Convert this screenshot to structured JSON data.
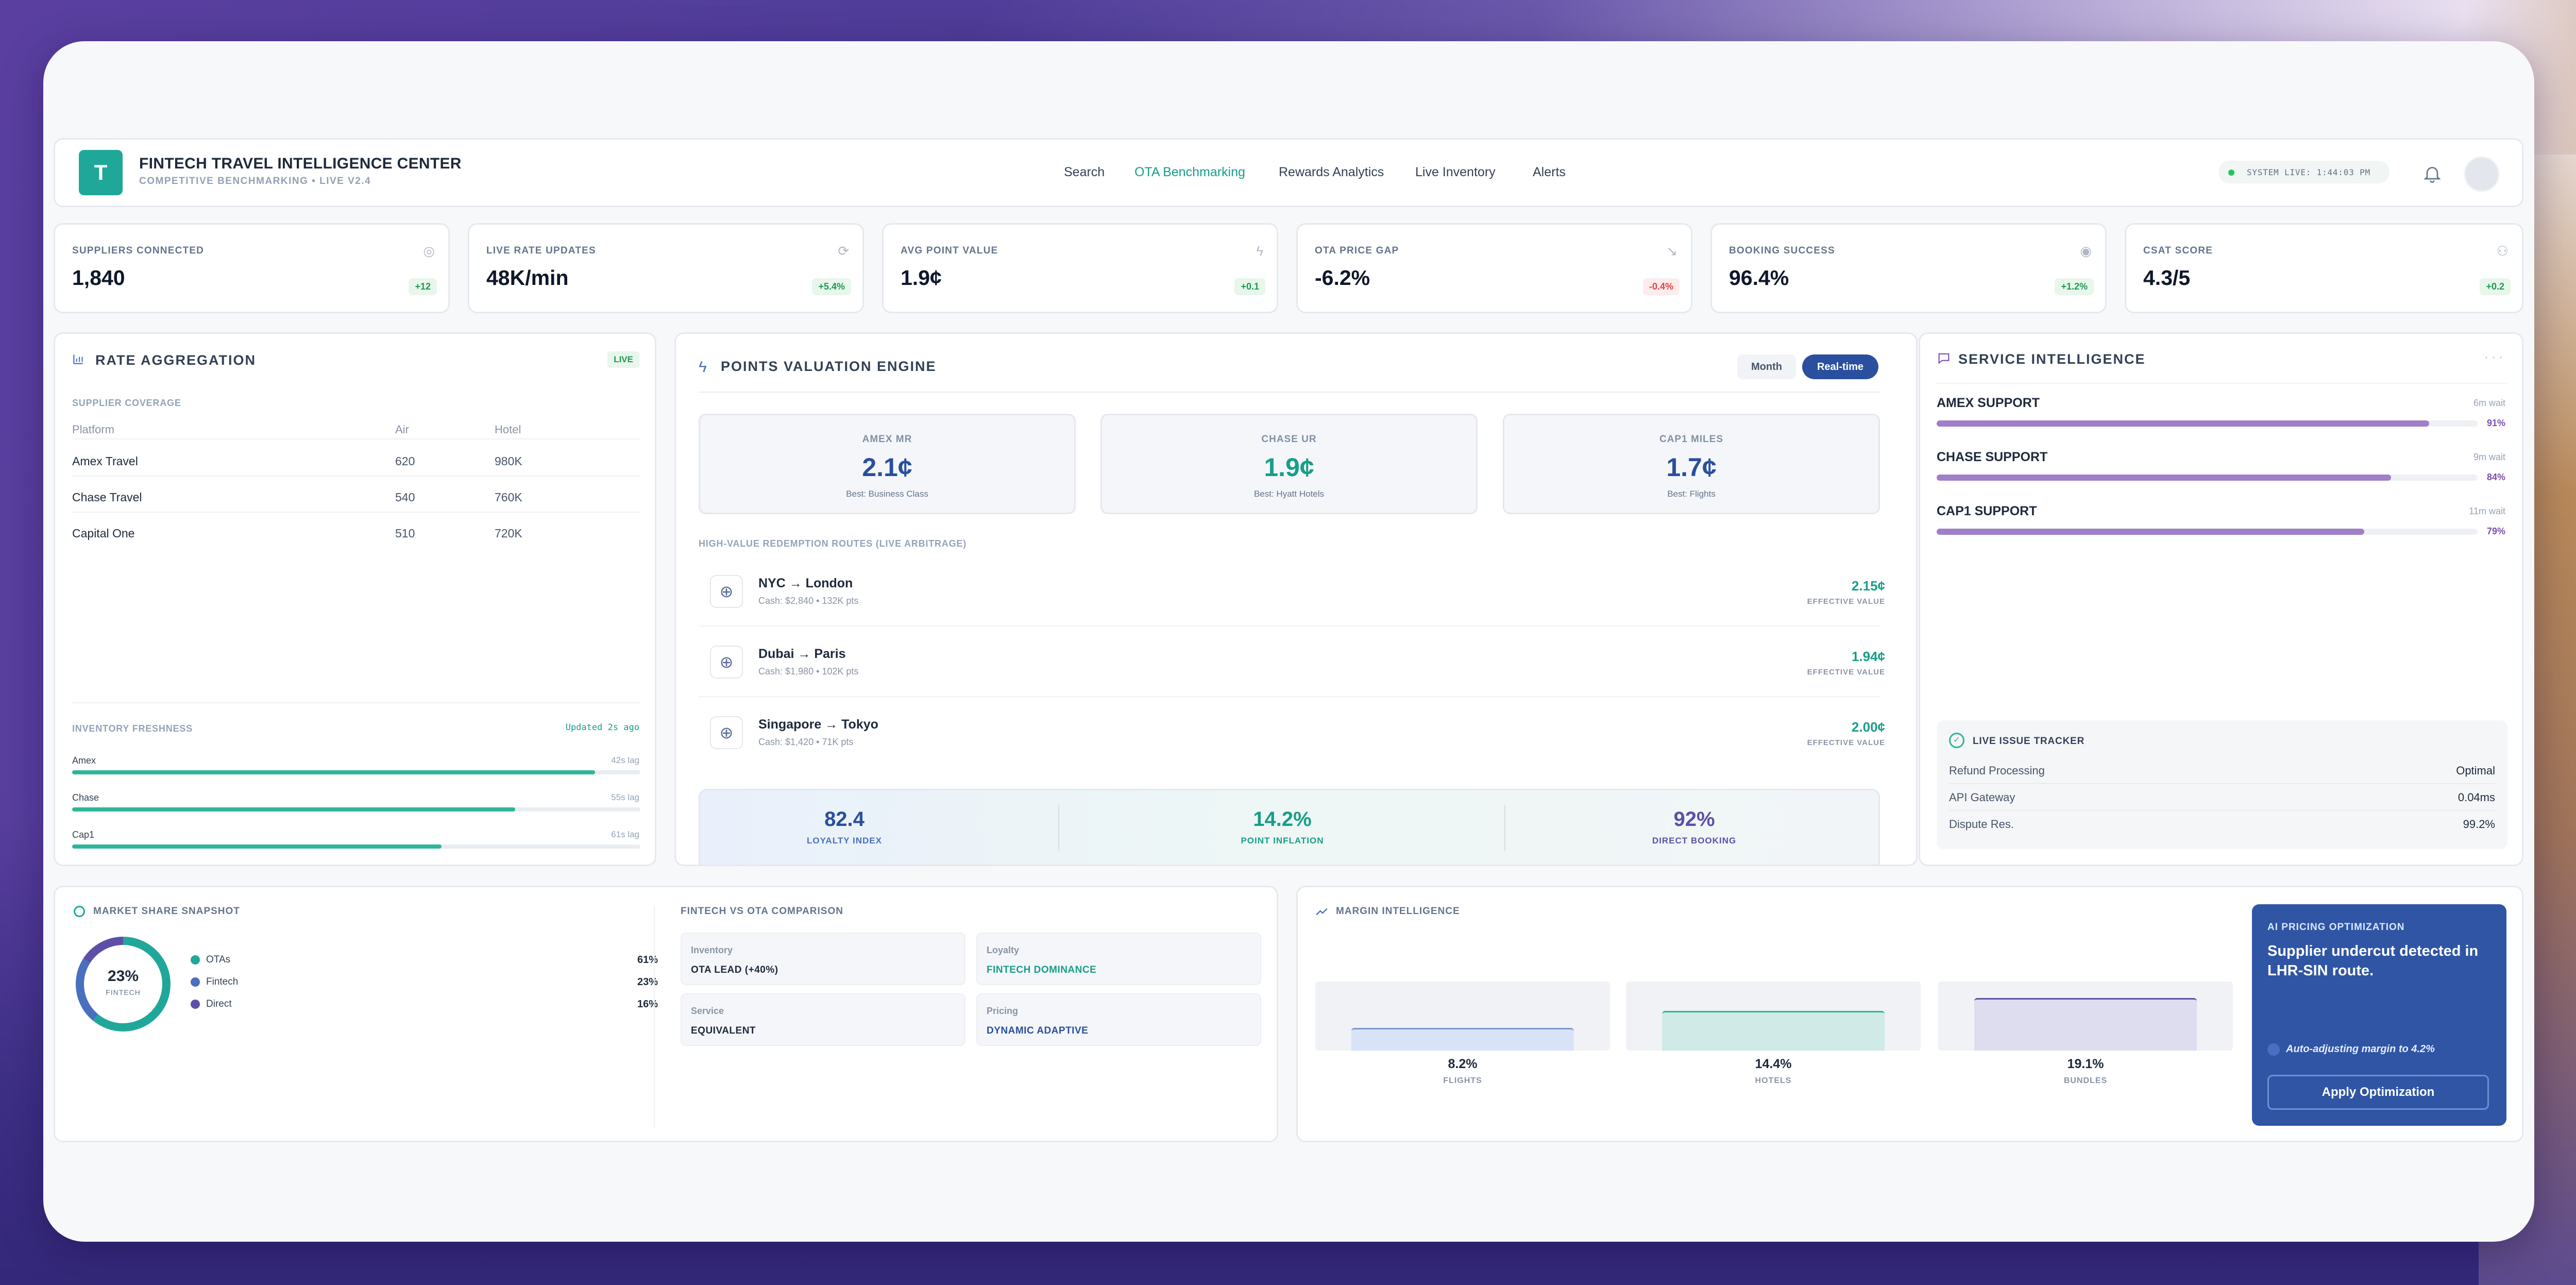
{
  "app": {
    "logo_letter": "T",
    "title": "FINTECH TRAVEL INTELLIGENCE CENTER",
    "subtitle": "COMPETITIVE BENCHMARKING • LIVE V2.4"
  },
  "nav": [
    {
      "label": "Search",
      "active": false
    },
    {
      "label": "OTA Benchmarking",
      "active": true
    },
    {
      "label": "Rewards Analytics",
      "active": false
    },
    {
      "label": "Live Inventory",
      "active": false
    },
    {
      "label": "Alerts",
      "active": false
    }
  ],
  "status": {
    "live_text": "SYSTEM LIVE: 1:44:03 PM"
  },
  "kpis": [
    {
      "label": "SUPPLIERS CONNECTED",
      "value": "1,840",
      "delta": "+12",
      "trend": "up",
      "icon": "globe-icon"
    },
    {
      "label": "LIVE RATE UPDATES",
      "value": "48K/min",
      "delta": "+5.4%",
      "trend": "up",
      "icon": "refresh-icon"
    },
    {
      "label": "AVG POINT VALUE",
      "value": "1.9¢",
      "delta": "+0.1",
      "trend": "up",
      "icon": "bolt-icon"
    },
    {
      "label": "OTA PRICE GAP",
      "value": "-6.2%",
      "delta": "-0.4%",
      "trend": "down",
      "icon": "trend-down-icon"
    },
    {
      "label": "BOOKING SUCCESS",
      "value": "96.4%",
      "delta": "+1.2%",
      "trend": "up",
      "icon": "check-circle-icon"
    },
    {
      "label": "CSAT SCORE",
      "value": "4.3/5",
      "delta": "+0.2",
      "trend": "up",
      "icon": "users-icon"
    }
  ],
  "rate_agg": {
    "title": "RATE AGGREGATION",
    "live_badge": "LIVE",
    "coverage_label": "SUPPLIER COVERAGE",
    "columns": [
      "Platform",
      "Air",
      "Hotel"
    ],
    "rows": [
      [
        "Amex Travel",
        "620",
        "980K"
      ],
      [
        "Chase Travel",
        "540",
        "760K"
      ],
      [
        "Capital One",
        "510",
        "720K"
      ]
    ],
    "freshness_label": "INVENTORY FRESHNESS",
    "freshness_updated": "Updated 2s ago",
    "freshness": [
      {
        "name": "Amex",
        "lag": "42s lag",
        "level": 0.92
      },
      {
        "name": "Chase",
        "lag": "55s lag",
        "level": 0.78
      },
      {
        "name": "Cap1",
        "lag": "61s lag",
        "level": 0.65
      }
    ]
  },
  "points": {
    "title": "POINTS VALUATION ENGINE",
    "tab_month": "Month",
    "tab_realtime": "Real-time",
    "cards": [
      {
        "label": "AMEX MR",
        "value": "2.1¢",
        "sub": "Best: Business Class"
      },
      {
        "label": "CHASE UR",
        "value": "1.9¢",
        "sub": "Best: Hyatt Hotels"
      },
      {
        "label": "CAP1 MILES",
        "value": "1.7¢",
        "sub": "Best: Flights"
      }
    ],
    "routes_label": "HIGH-VALUE REDEMPTION ROUTES (LIVE ARBITRAGE)",
    "routes": [
      {
        "name": "NYC → London",
        "cash": "Cash: $2,840 • 132K pts",
        "rate": "2.15¢",
        "rate_label": "EFFECTIVE VALUE"
      },
      {
        "name": "Dubai → Paris",
        "cash": "Cash: $1,980 • 102K pts",
        "rate": "1.94¢",
        "rate_label": "EFFECTIVE VALUE"
      },
      {
        "name": "Singapore → Tokyo",
        "cash": "Cash: $1,420 • 71K pts",
        "rate": "2.00¢",
        "rate_label": "EFFECTIVE VALUE"
      }
    ],
    "footer": [
      {
        "value": "82.4",
        "label": "LOYALTY INDEX"
      },
      {
        "value": "14.2%",
        "label": "POINT INFLATION"
      },
      {
        "value": "92%",
        "label": "DIRECT BOOKING"
      }
    ]
  },
  "service": {
    "title": "SERVICE INTELLIGENCE",
    "suppliers": [
      {
        "name": "AMEX SUPPORT",
        "wait": "6m wait",
        "pct": "91%",
        "level": 0.91
      },
      {
        "name": "CHASE SUPPORT",
        "wait": "9m wait",
        "pct": "84%",
        "level": 0.84
      },
      {
        "name": "CAP1 SUPPORT",
        "wait": "11m wait",
        "pct": "79%",
        "level": 0.79
      }
    ],
    "tracker_title": "LIVE ISSUE TRACKER",
    "tracker": [
      [
        "Refund Processing",
        "Optimal"
      ],
      [
        "API Gateway",
        "0.04ms"
      ],
      [
        "Dispute Res.",
        "99.2%"
      ]
    ]
  },
  "market": {
    "title": "MARKET SHARE SNAPSHOT",
    "center_value": "23%",
    "center_label": "FINTECH",
    "legend": [
      {
        "name": "OTAs",
        "pct": "61%",
        "color": "#1fa89a",
        "share": 61
      },
      {
        "name": "Fintech",
        "pct": "23%",
        "color": "#4a6fbf",
        "share": 23
      },
      {
        "name": "Direct",
        "pct": "16%",
        "color": "#5d4fa8",
        "share": 16
      }
    ],
    "comparison_title": "FINTECH VS OTA COMPARISON",
    "comparison": [
      {
        "key": "Inventory",
        "value": "OTA LEAD (+40%)",
        "color": "#1e293b"
      },
      {
        "key": "Loyalty",
        "value": "FINTECH DOMINANCE",
        "color": "#179e89"
      },
      {
        "key": "Service",
        "value": "EQUIVALENT",
        "color": "#1e293b"
      },
      {
        "key": "Pricing",
        "value": "DYNAMIC ADAPTIVE",
        "color": "#2a4f9e"
      }
    ]
  },
  "margin": {
    "title": "MARGIN INTELLIGENCE",
    "bars": [
      {
        "value": "8.2%",
        "label": "FLIGHTS",
        "num": 8.2,
        "color": "#d8e3f7",
        "line": "#7d97cc"
      },
      {
        "value": "14.4%",
        "label": "HOTELS",
        "num": 14.4,
        "color": "#cfeae7",
        "line": "#2fb59a"
      },
      {
        "value": "19.1%",
        "label": "BUNDLES",
        "num": 19.1,
        "color": "#dedcef",
        "line": "#5d4fa8"
      }
    ],
    "ai": {
      "label": "AI PRICING OPTIMIZATION",
      "headline": "Supplier undercut detected in LHR-SIN route.",
      "status": "Auto-adjusting margin to 4.2%",
      "button": "Apply Optimization"
    }
  }
}
